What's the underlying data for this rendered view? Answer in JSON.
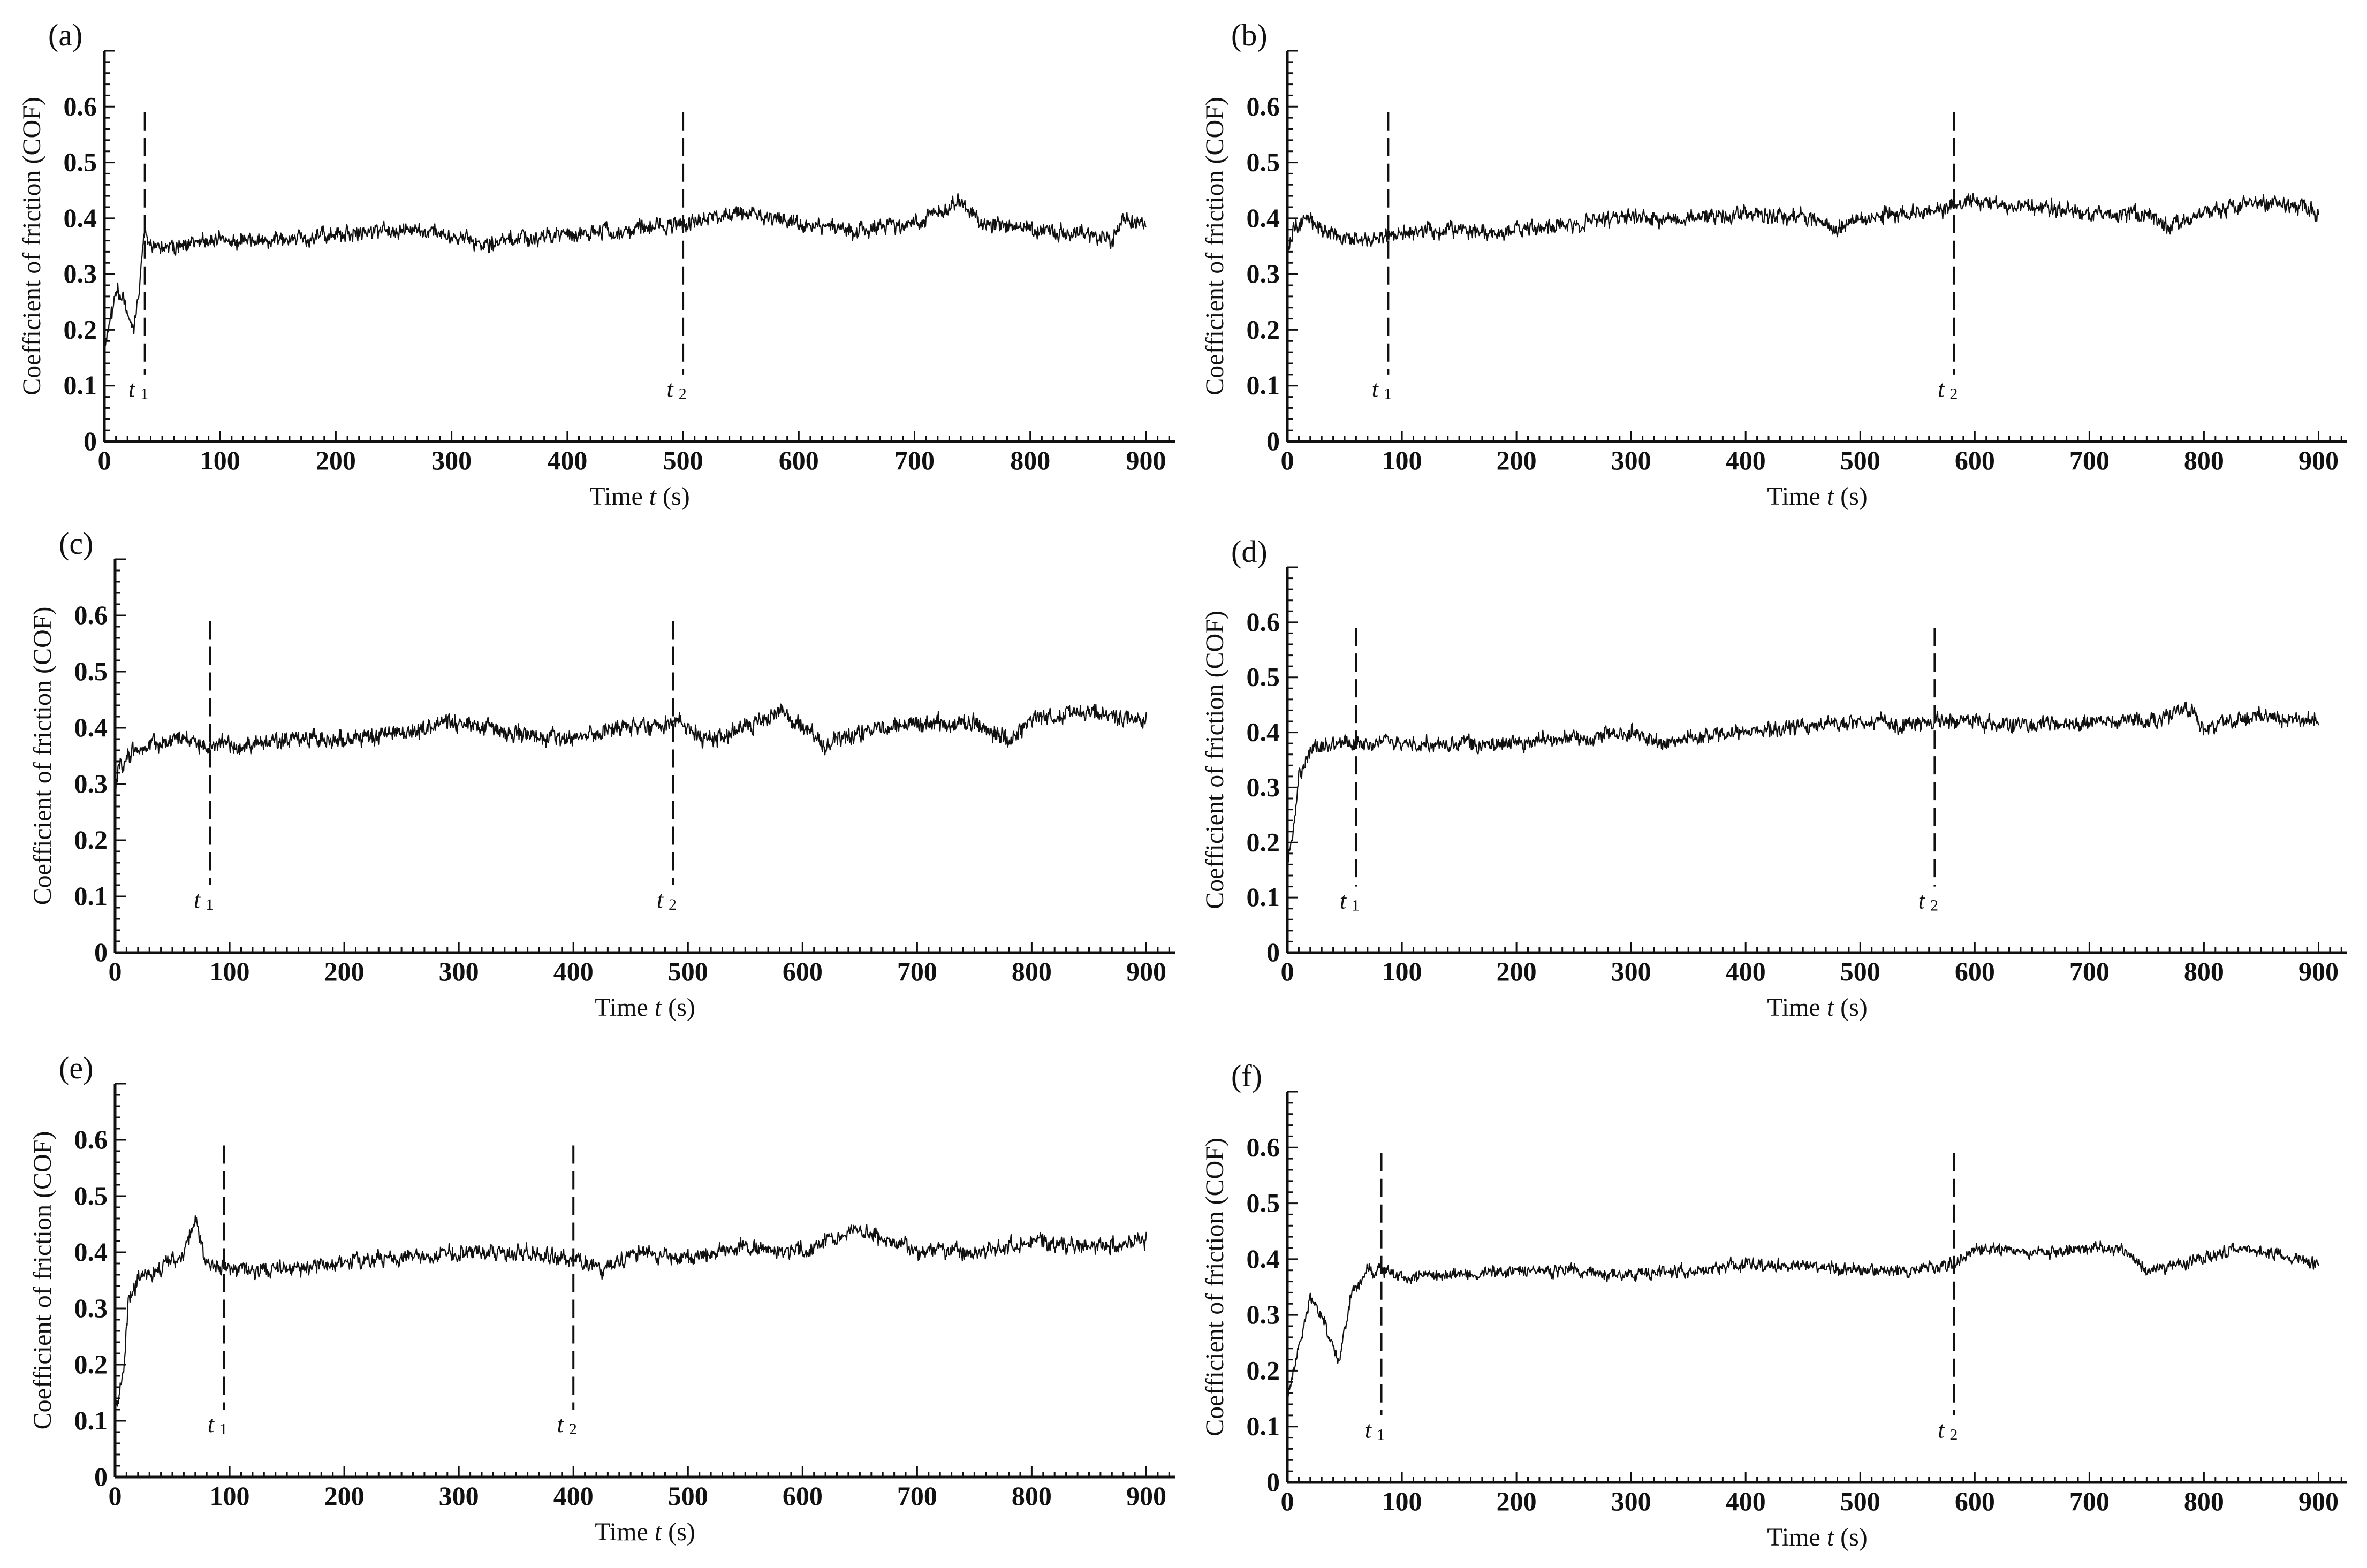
{
  "figure": {
    "xlabel_prefix": "Time ",
    "xlabel_var": "t",
    "xlabel_unit": " (s)",
    "ylabel": "Coefficient of friction (COF)",
    "colors": {
      "line": "#111111",
      "axis": "#111111",
      "background": "#ffffff"
    }
  },
  "chart_data": [
    {
      "panel": "(a)",
      "type": "line",
      "xlim": [
        0,
        900
      ],
      "ylim": [
        0,
        0.6
      ],
      "xticks": [
        "0",
        "100",
        "200",
        "300",
        "400",
        "500",
        "600",
        "700",
        "800",
        "900"
      ],
      "yticks": [
        "0",
        "0.1",
        "0.2",
        "0.3",
        "0.4",
        "0.5",
        "0.6"
      ],
      "grid": false,
      "markers": [
        {
          "name": "t",
          "sub": "1",
          "x": 35
        },
        {
          "name": "t",
          "sub": "2",
          "x": 500
        }
      ],
      "series": [
        {
          "x": [
            0,
            5,
            12,
            18,
            25,
            30,
            35,
            40,
            60,
            100,
            150,
            200,
            250,
            300,
            330,
            350,
            400,
            450,
            500,
            550,
            600,
            650,
            700,
            740,
            760,
            800,
            850,
            870,
            880,
            900
          ],
          "y": [
            0.17,
            0.22,
            0.27,
            0.24,
            0.2,
            0.28,
            0.38,
            0.35,
            0.35,
            0.36,
            0.36,
            0.37,
            0.38,
            0.37,
            0.35,
            0.36,
            0.37,
            0.38,
            0.39,
            0.41,
            0.39,
            0.38,
            0.39,
            0.43,
            0.39,
            0.38,
            0.37,
            0.36,
            0.4,
            0.39
          ],
          "noise": 0.018
        }
      ]
    },
    {
      "panel": "(b)",
      "type": "line",
      "xlim": [
        0,
        900
      ],
      "ylim": [
        0,
        0.6
      ],
      "xticks": [
        "0",
        "100",
        "200",
        "300",
        "400",
        "500",
        "600",
        "700",
        "800",
        "900"
      ],
      "yticks": [
        "0",
        "0.1",
        "0.2",
        "0.3",
        "0.4",
        "0.5",
        "0.6"
      ],
      "grid": false,
      "markers": [
        {
          "name": "t",
          "sub": "1",
          "x": 88
        },
        {
          "name": "t",
          "sub": "2",
          "x": 582
        }
      ],
      "series": [
        {
          "x": [
            0,
            5,
            15,
            40,
            70,
            88,
            120,
            160,
            180,
            200,
            250,
            300,
            350,
            400,
            450,
            480,
            500,
            550,
            582,
            600,
            650,
            700,
            750,
            770,
            800,
            850,
            880,
            900
          ],
          "y": [
            0.33,
            0.38,
            0.4,
            0.37,
            0.36,
            0.37,
            0.38,
            0.38,
            0.37,
            0.38,
            0.39,
            0.4,
            0.4,
            0.41,
            0.4,
            0.38,
            0.4,
            0.41,
            0.42,
            0.43,
            0.42,
            0.41,
            0.41,
            0.38,
            0.41,
            0.43,
            0.42,
            0.41
          ],
          "noise": 0.018
        }
      ]
    },
    {
      "panel": "(c)",
      "type": "line",
      "xlim": [
        0,
        900
      ],
      "ylim": [
        0,
        0.6
      ],
      "xticks": [
        "0",
        "100",
        "200",
        "300",
        "400",
        "500",
        "600",
        "700",
        "800",
        "900"
      ],
      "yticks": [
        "0",
        "0.1",
        "0.2",
        "0.3",
        "0.4",
        "0.5",
        "0.6"
      ],
      "grid": false,
      "markers": [
        {
          "name": "t",
          "sub": "1",
          "x": 83
        },
        {
          "name": "t",
          "sub": "2",
          "x": 487
        }
      ],
      "series": [
        {
          "x": [
            0,
            3,
            10,
            30,
            60,
            83,
            120,
            160,
            200,
            250,
            300,
            350,
            400,
            450,
            487,
            520,
            550,
            580,
            620,
            650,
            700,
            750,
            780,
            800,
            850,
            900
          ],
          "y": [
            0.28,
            0.33,
            0.35,
            0.37,
            0.38,
            0.37,
            0.37,
            0.38,
            0.38,
            0.39,
            0.41,
            0.39,
            0.38,
            0.4,
            0.41,
            0.38,
            0.4,
            0.43,
            0.37,
            0.39,
            0.41,
            0.41,
            0.38,
            0.41,
            0.43,
            0.41
          ],
          "noise": 0.02
        }
      ]
    },
    {
      "panel": "(d)",
      "type": "line",
      "xlim": [
        0,
        900
      ],
      "ylim": [
        0,
        0.6
      ],
      "xticks": [
        "0",
        "100",
        "200",
        "300",
        "400",
        "500",
        "600",
        "700",
        "800",
        "900"
      ],
      "yticks": [
        "0",
        "0.1",
        "0.2",
        "0.3",
        "0.4",
        "0.5",
        "0.6"
      ],
      "grid": false,
      "markers": [
        {
          "name": "t",
          "sub": "1",
          "x": 60
        },
        {
          "name": "t",
          "sub": "2",
          "x": 565
        }
      ],
      "series": [
        {
          "x": [
            0,
            5,
            10,
            20,
            40,
            60,
            100,
            150,
            200,
            250,
            300,
            330,
            350,
            400,
            450,
            500,
            540,
            565,
            600,
            650,
            700,
            750,
            790,
            800,
            850,
            900
          ],
          "y": [
            0.16,
            0.22,
            0.32,
            0.37,
            0.38,
            0.38,
            0.38,
            0.38,
            0.38,
            0.39,
            0.4,
            0.38,
            0.39,
            0.4,
            0.41,
            0.42,
            0.41,
            0.42,
            0.42,
            0.41,
            0.42,
            0.42,
            0.44,
            0.41,
            0.43,
            0.42
          ],
          "noise": 0.018
        }
      ]
    },
    {
      "panel": "(e)",
      "type": "line",
      "xlim": [
        0,
        900
      ],
      "ylim": [
        0,
        0.6
      ],
      "xticks": [
        "0",
        "100",
        "200",
        "300",
        "400",
        "500",
        "600",
        "700",
        "800",
        "900"
      ],
      "yticks": [
        "0",
        "0.1",
        "0.2",
        "0.3",
        "0.4",
        "0.5",
        "0.6"
      ],
      "grid": false,
      "markers": [
        {
          "name": "t",
          "sub": "1",
          "x": 95
        },
        {
          "name": "t",
          "sub": "2",
          "x": 400
        }
      ],
      "series": [
        {
          "x": [
            0,
            4,
            8,
            12,
            20,
            40,
            60,
            70,
            80,
            95,
            150,
            200,
            250,
            300,
            350,
            400,
            430,
            450,
            500,
            550,
            600,
            650,
            700,
            750,
            800,
            850,
            900
          ],
          "y": [
            0.13,
            0.15,
            0.2,
            0.32,
            0.35,
            0.37,
            0.4,
            0.46,
            0.38,
            0.37,
            0.37,
            0.38,
            0.39,
            0.4,
            0.4,
            0.39,
            0.37,
            0.4,
            0.39,
            0.41,
            0.4,
            0.44,
            0.4,
            0.4,
            0.42,
            0.41,
            0.42
          ],
          "noise": 0.018
        }
      ]
    },
    {
      "panel": "(f)",
      "type": "line",
      "xlim": [
        0,
        900
      ],
      "ylim": [
        0,
        0.6
      ],
      "xticks": [
        "0",
        "100",
        "200",
        "300",
        "400",
        "500",
        "600",
        "700",
        "800",
        "900"
      ],
      "yticks": [
        "0",
        "0.1",
        "0.2",
        "0.3",
        "0.4",
        "0.5",
        "0.6"
      ],
      "grid": false,
      "markers": [
        {
          "name": "t",
          "sub": "1",
          "x": 82
        },
        {
          "name": "t",
          "sub": "2",
          "x": 582
        }
      ],
      "series": [
        {
          "x": [
            0,
            10,
            20,
            30,
            40,
            45,
            55,
            70,
            82,
            100,
            150,
            200,
            250,
            300,
            350,
            400,
            450,
            500,
            550,
            582,
            600,
            650,
            700,
            730,
            750,
            800,
            830,
            860,
            900
          ],
          "y": [
            0.15,
            0.24,
            0.33,
            0.3,
            0.24,
            0.22,
            0.33,
            0.38,
            0.38,
            0.37,
            0.37,
            0.38,
            0.38,
            0.37,
            0.38,
            0.39,
            0.39,
            0.38,
            0.38,
            0.39,
            0.42,
            0.41,
            0.42,
            0.42,
            0.38,
            0.4,
            0.42,
            0.41,
            0.39
          ],
          "noise": 0.014
        }
      ]
    }
  ]
}
